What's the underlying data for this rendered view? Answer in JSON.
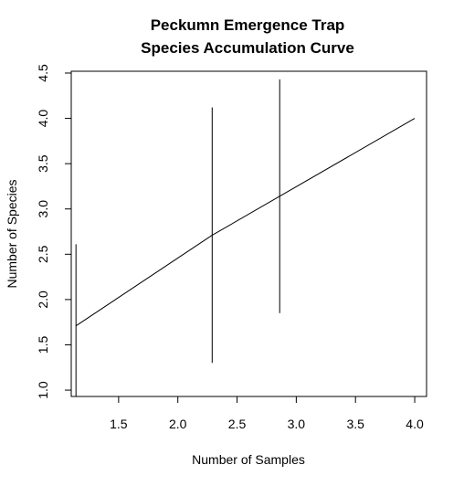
{
  "chart_data": {
    "type": "line",
    "title_lines": [
      "Peckumn Emergence Trap",
      "Species Accumulation Curve"
    ],
    "xlabel": "Number of Samples",
    "ylabel": "Number of Species",
    "xlim": [
      1.1,
      4.1
    ],
    "ylim": [
      0.93,
      4.52
    ],
    "x_ticks": [
      1.5,
      2.0,
      2.5,
      3.0,
      3.5,
      4.0
    ],
    "x_tick_labels": [
      "1.5",
      "2.0",
      "2.5",
      "3.0",
      "3.5",
      "4.0"
    ],
    "y_ticks": [
      1.0,
      1.5,
      2.0,
      2.5,
      3.0,
      3.5,
      4.0,
      4.5
    ],
    "y_tick_labels": [
      "1.0",
      "1.5",
      "2.0",
      "2.5",
      "3.0",
      "3.5",
      "4.0",
      "4.5"
    ],
    "series": [
      {
        "x": [
          1.14,
          2.29,
          2.86,
          4.0
        ],
        "y": [
          1.71,
          2.71,
          3.14,
          4.0
        ]
      }
    ],
    "error_bars": [
      {
        "x": 1.14,
        "low": 0.85,
        "high": 2.61
      },
      {
        "x": 2.29,
        "low": 1.3,
        "high": 4.12
      },
      {
        "x": 2.86,
        "low": 1.85,
        "high": 4.43
      }
    ],
    "grid": false,
    "line_color": "#000000"
  }
}
